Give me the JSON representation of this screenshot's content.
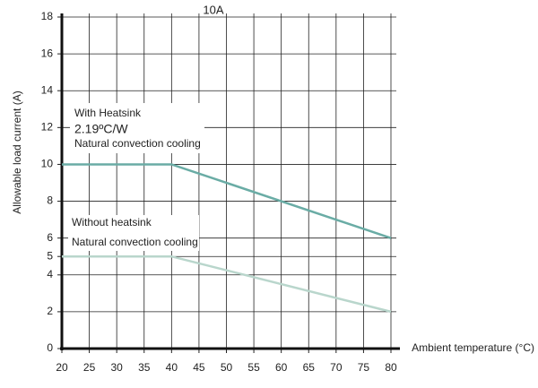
{
  "chart_data": {
    "type": "line",
    "title": "10A",
    "x_label": "Ambient temperature (°C)",
    "y_label": "Allowable load current (A)",
    "x": [
      20,
      40,
      80
    ],
    "series": [
      {
        "color": "#6aaca5",
        "values": [
          10,
          10,
          6
        ]
      },
      {
        "color": "#b9d6cc",
        "values": [
          5,
          5,
          2
        ]
      }
    ],
    "annotations": [
      "With Heatsink",
      "2.19ºC/W",
      "Natural convection cooling",
      "Without heatsink",
      "Natural convection cooling"
    ],
    "xlim": [
      20,
      80
    ],
    "xticks": [
      20,
      25,
      30,
      35,
      40,
      45,
      50,
      55,
      60,
      65,
      70,
      75,
      80
    ],
    "ylim": [
      0,
      18
    ],
    "yticks": [
      0,
      2,
      4,
      5,
      6,
      8,
      10,
      12,
      14,
      16,
      18
    ],
    "grid": true
  }
}
